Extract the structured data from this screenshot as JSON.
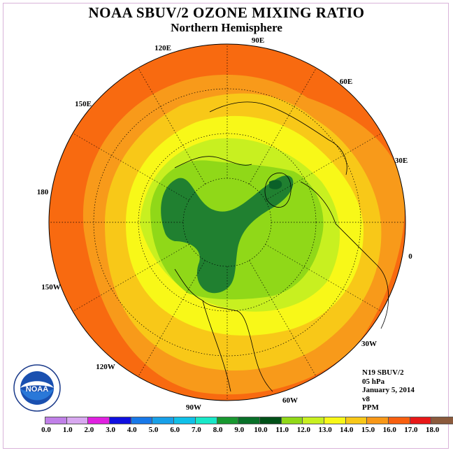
{
  "title": "NOAA SBUV/2 OZONE MIXING RATIO",
  "subtitle": "Northern Hemisphere",
  "longitude_labels": [
    "90E",
    "60E",
    "30E",
    "0",
    "30W",
    "60W",
    "90W",
    "120W",
    "150W",
    "180",
    "150E",
    "120E"
  ],
  "info": {
    "instrument": "N19 SBUV/2",
    "level": "05 hPa",
    "date": "January 5, 2014",
    "version": "v8",
    "units": "PPM"
  },
  "colorbar": {
    "ticks": [
      "0.0",
      "1.0",
      "2.0",
      "3.0",
      "4.0",
      "5.0",
      "6.0",
      "7.0",
      "8.0",
      "9.0",
      "10.0",
      "11.0",
      "12.0",
      "13.0",
      "14.0",
      "15.0",
      "16.0",
      "17.0",
      "18.0"
    ],
    "colors": [
      "#c080e8",
      "#d8a8f0",
      "#e020e0",
      "#1010e0",
      "#1878e8",
      "#18a0e8",
      "#10c0e8",
      "#18e8c8",
      "#189830",
      "#087028",
      "#005018",
      "#90d818",
      "#c8f020",
      "#f8f818",
      "#f8c818",
      "#f89818",
      "#f86010",
      "#e81818",
      "#8b5a3c"
    ]
  },
  "logo": {
    "text": "NOAA"
  },
  "map_colors": {
    "ocean_outer": "#f86a10",
    "band_15": "#f89a1a",
    "band_14": "#f8c818",
    "band_13": "#f8f818",
    "band_12": "#c8f020",
    "band_11": "#90d818",
    "band_10": "#208030",
    "band_9": "#0a6028"
  }
}
